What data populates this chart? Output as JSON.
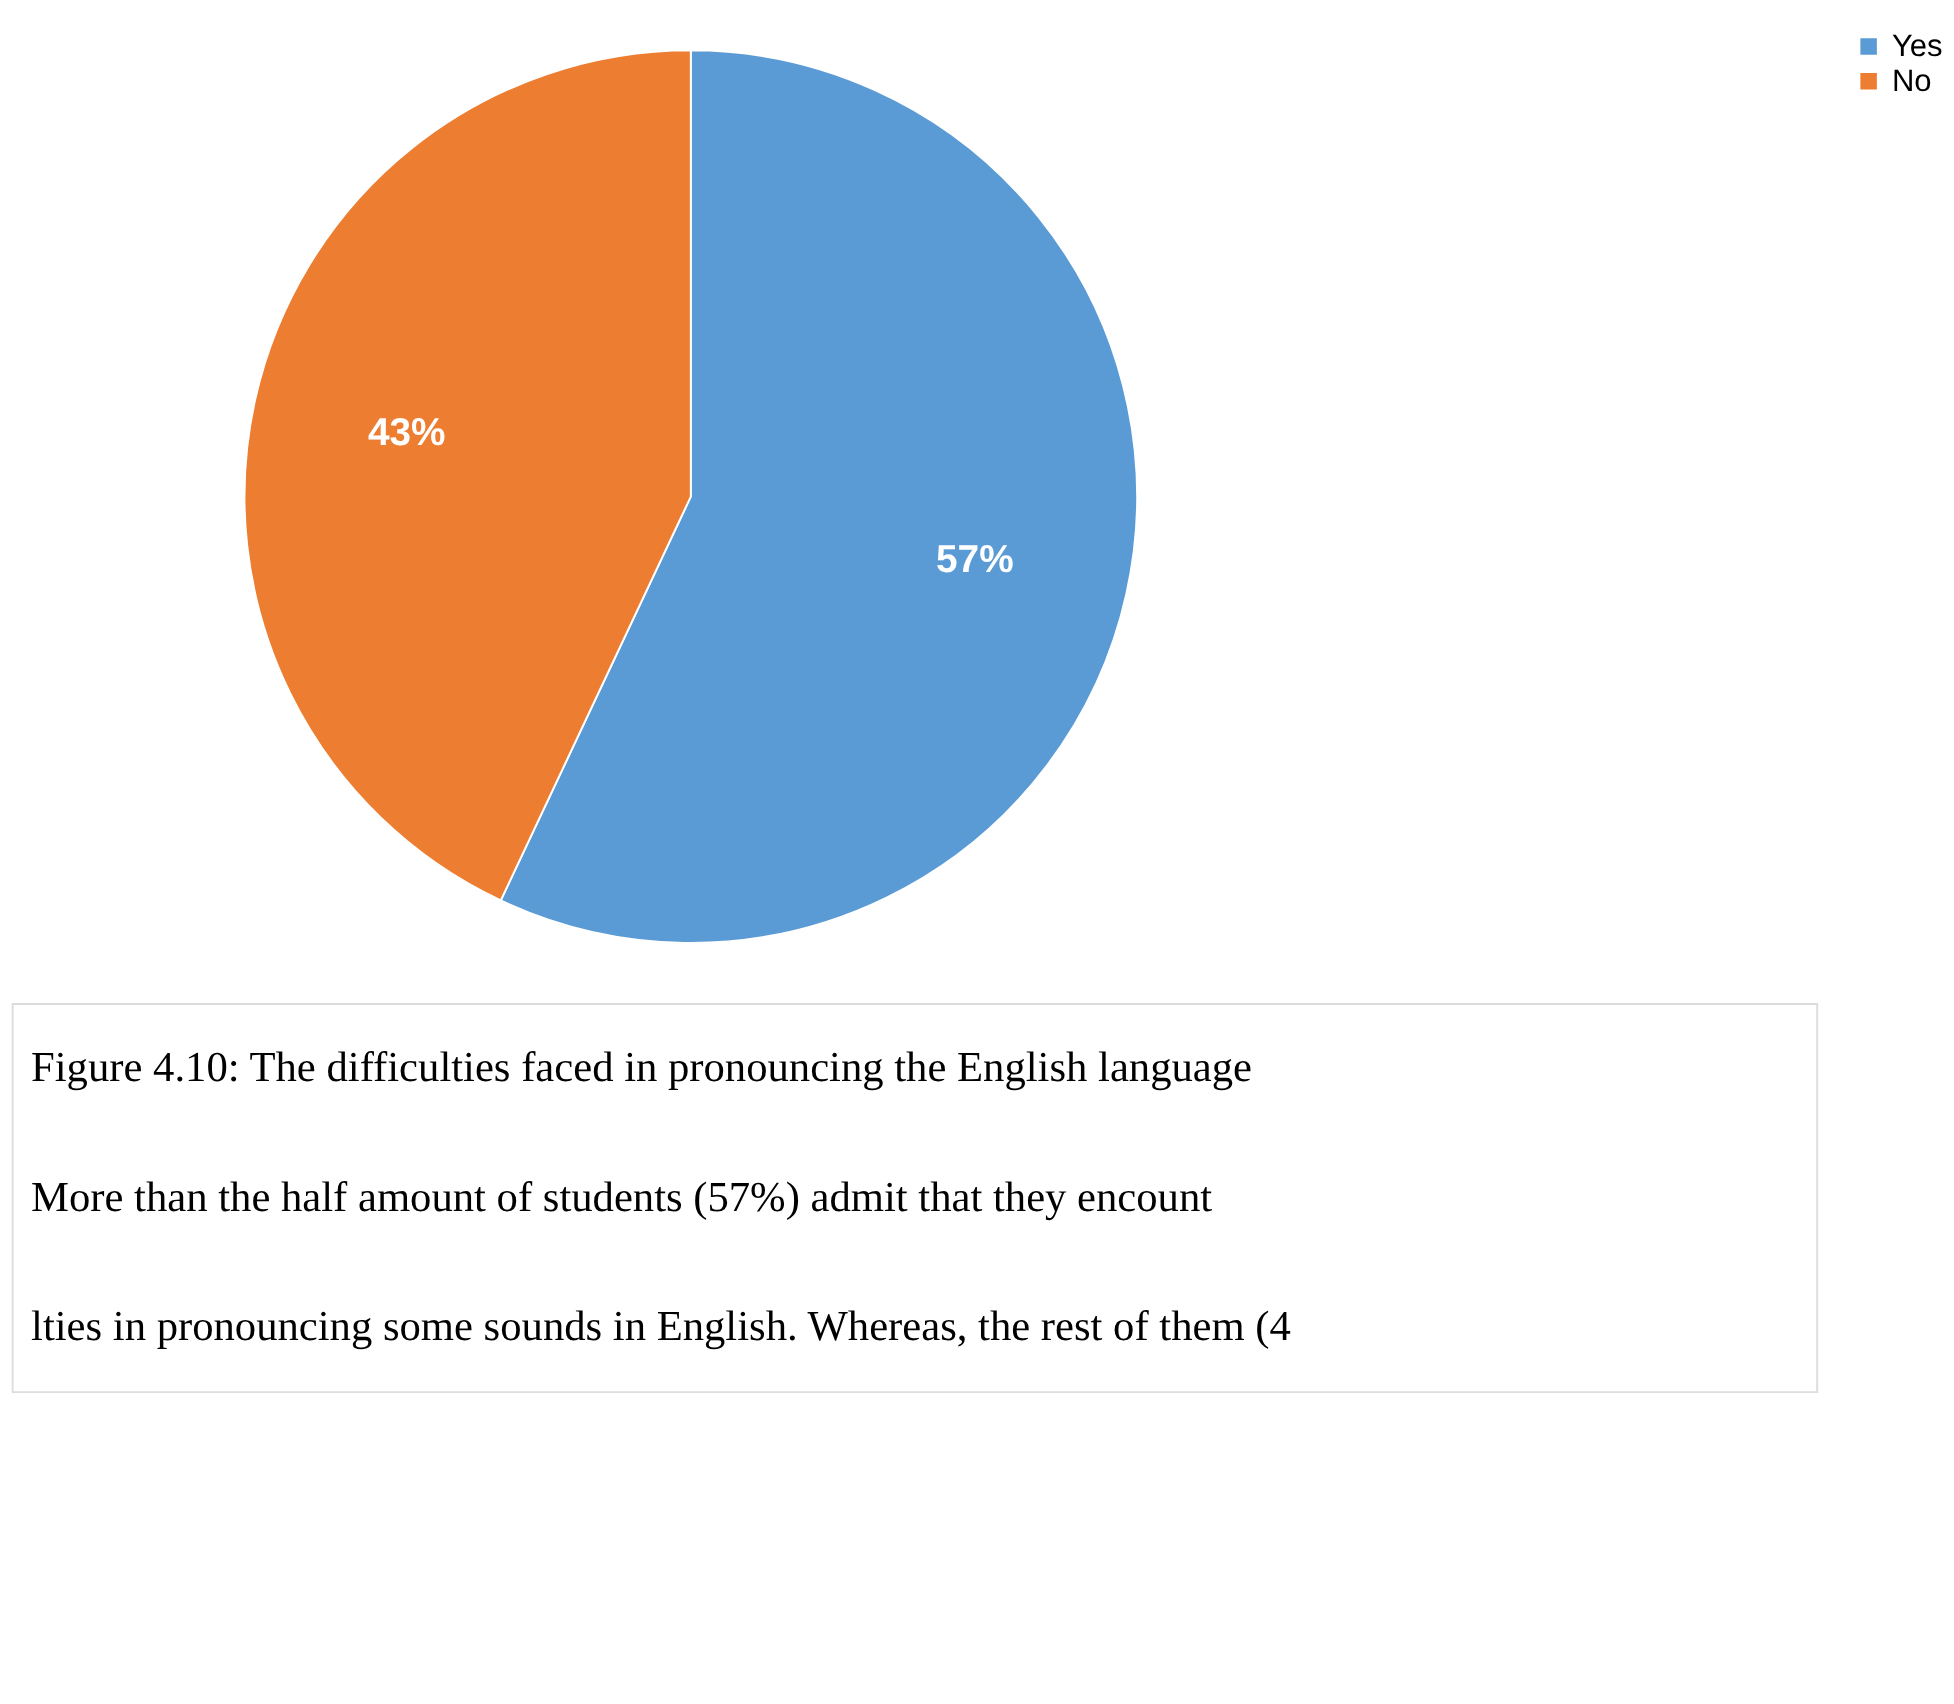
{
  "chart_data": {
    "type": "pie",
    "categories": [
      "Yes",
      "No"
    ],
    "values": [
      57,
      43
    ],
    "colors": [
      "#5b9bd5",
      "#ed7d31"
    ],
    "value_labels": [
      "57%",
      "43%"
    ],
    "legend": "right",
    "annotations": [
      "Figure 4.10: The difficulties faced in pronouncing the English language",
      "More than the half amount of students (57%) admit that they encount",
      "lties in pronouncing some sounds in English. Whereas, the rest of them (4"
    ]
  }
}
